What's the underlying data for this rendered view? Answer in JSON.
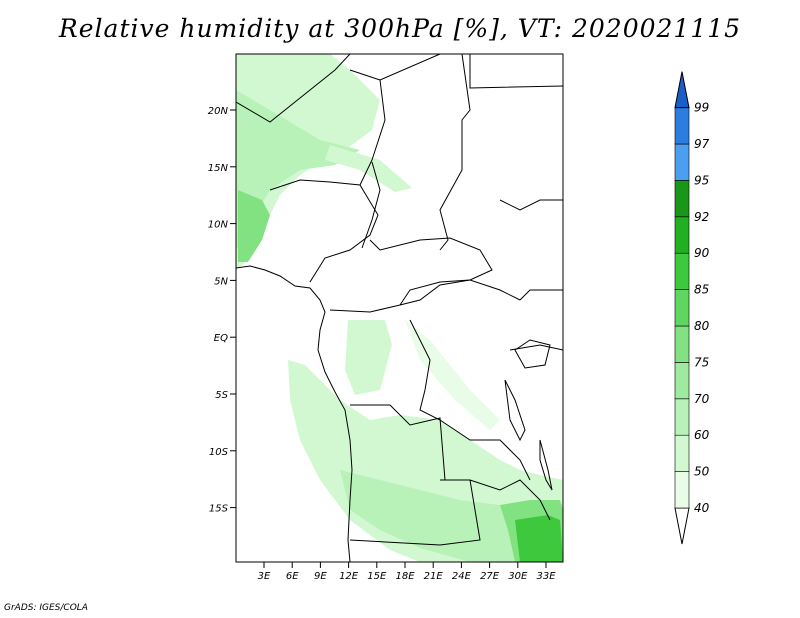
{
  "title": "Relative humidity at 300hPa [%], VT: 2020021115",
  "credit": "GrADS: IGES/COLA",
  "map": {
    "lat_ticks": [
      "20N",
      "15N",
      "10N",
      "5N",
      "EQ",
      "5S",
      "10S",
      "15S"
    ],
    "lon_ticks": [
      "3E",
      "6E",
      "9E",
      "12E",
      "15E",
      "18E",
      "21E",
      "24E",
      "27E",
      "30E",
      "33E"
    ]
  },
  "colorbar": {
    "levels": [
      "40",
      "50",
      "60",
      "70",
      "75",
      "80",
      "85",
      "90",
      "92",
      "95",
      "97",
      "99"
    ],
    "colors": [
      "#ffffff",
      "#e8fce8",
      "#d2f8d2",
      "#b8f2b8",
      "#9eea9e",
      "#82e282",
      "#5fd65f",
      "#3ec83e",
      "#22b022",
      "#1a961a",
      "#4c9ef0",
      "#2b7ee0",
      "#1a5ec8"
    ]
  }
}
